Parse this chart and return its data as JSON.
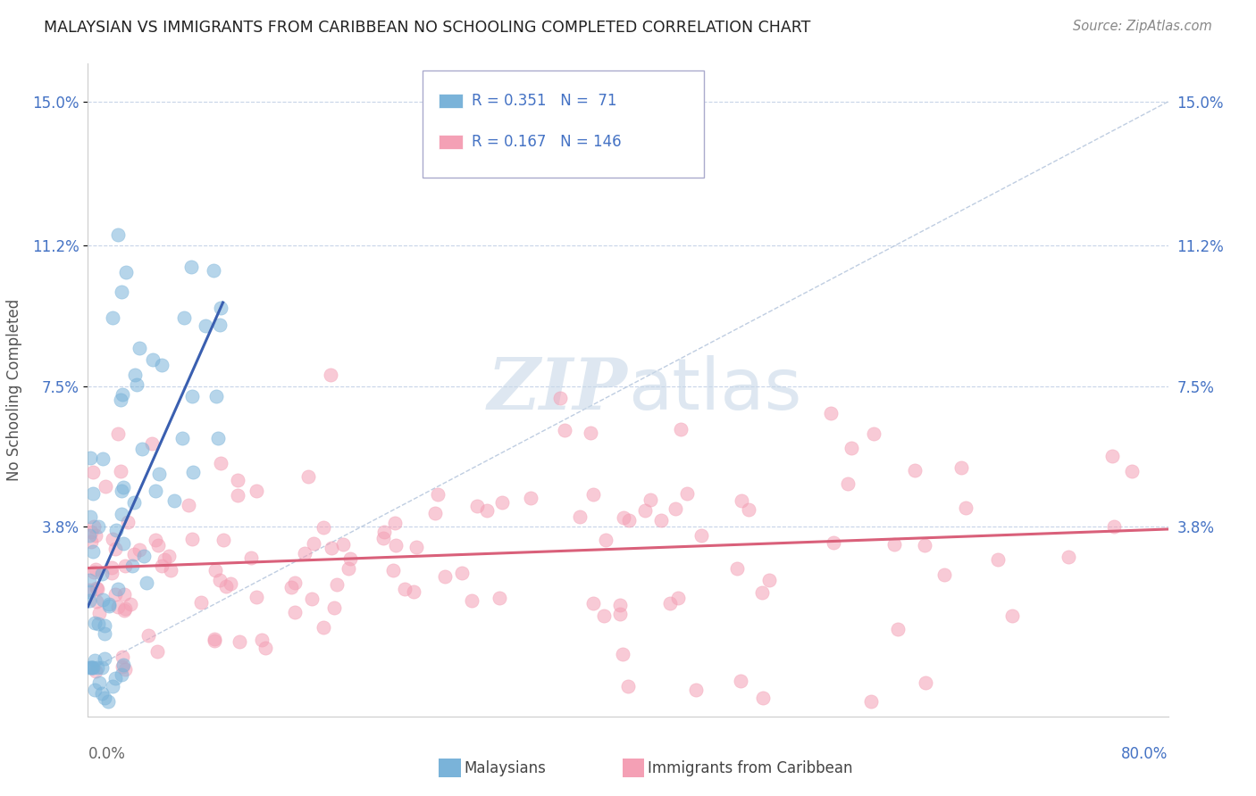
{
  "title": "MALAYSIAN VS IMMIGRANTS FROM CARIBBEAN NO SCHOOLING COMPLETED CORRELATION CHART",
  "source": "Source: ZipAtlas.com",
  "ylabel": "No Schooling Completed",
  "xmin": 0.0,
  "xmax": 0.8,
  "ymin": -0.012,
  "ymax": 0.16,
  "legend_r1": "R = 0.351",
  "legend_n1": "N =  71",
  "legend_r2": "R = 0.167",
  "legend_n2": "N = 146",
  "color_blue": "#7ab3d9",
  "color_pink": "#f4a0b5",
  "color_blue_text": "#4472c4",
  "trendline_blue": "#3a5fb0",
  "trendline_pink": "#d9607a",
  "diagonal_color": "#b8c8de",
  "grid_color": "#c8d4e8",
  "ytick_vals": [
    0.038,
    0.075,
    0.112,
    0.15
  ],
  "ytick_labels": [
    "3.8%",
    "7.5%",
    "11.2%",
    "15.0%"
  ]
}
